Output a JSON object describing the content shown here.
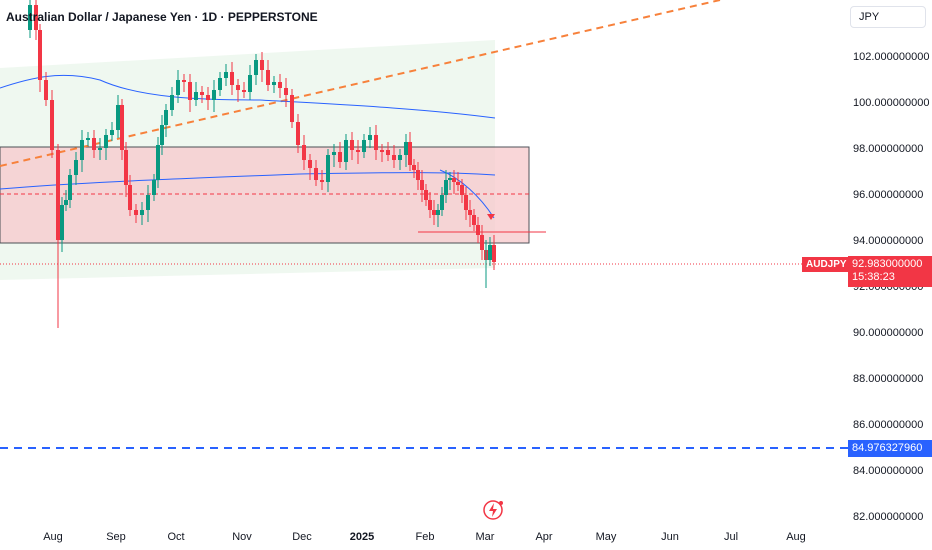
{
  "header": {
    "title": "Australian Dollar / Japanese Yen · 1D · PEPPERSTONE",
    "currency": "JPY"
  },
  "price": {
    "symbol": "AUDJPY",
    "last": "92.983000000",
    "countdown": "15:38:23",
    "hline_label": "84.976327960"
  },
  "chart_data": {
    "type": "candlestick",
    "title": "Australian Dollar / Japanese Yen · 1D · PEPPERSTONE",
    "y_ticks": [
      "102.000000000",
      "100.000000000",
      "98.000000000",
      "96.000000000",
      "94.000000000",
      "92.000000000",
      "90.000000000",
      "88.000000000",
      "86.000000000",
      "84.000000000",
      "82.000000000"
    ],
    "x_ticks": [
      "Aug",
      "Sep",
      "Oct",
      "Nov",
      "Dec",
      "2025",
      "Feb",
      "Mar",
      "Apr",
      "May",
      "Jun",
      "Jul",
      "Aug"
    ],
    "ylim": [
      81.5,
      104
    ],
    "last_price": 92.983,
    "horizontal_line": 84.976,
    "zone": {
      "top": 98.0,
      "bottom": 93.8
    },
    "mid_line": 96.0,
    "support_line": 94.3,
    "colors": {
      "up": "#089981",
      "down": "#f23645",
      "ma": "#2962ff",
      "trend": "#f7813b",
      "zone": "#f8c9cc",
      "channel": "#e8f5e9"
    }
  }
}
